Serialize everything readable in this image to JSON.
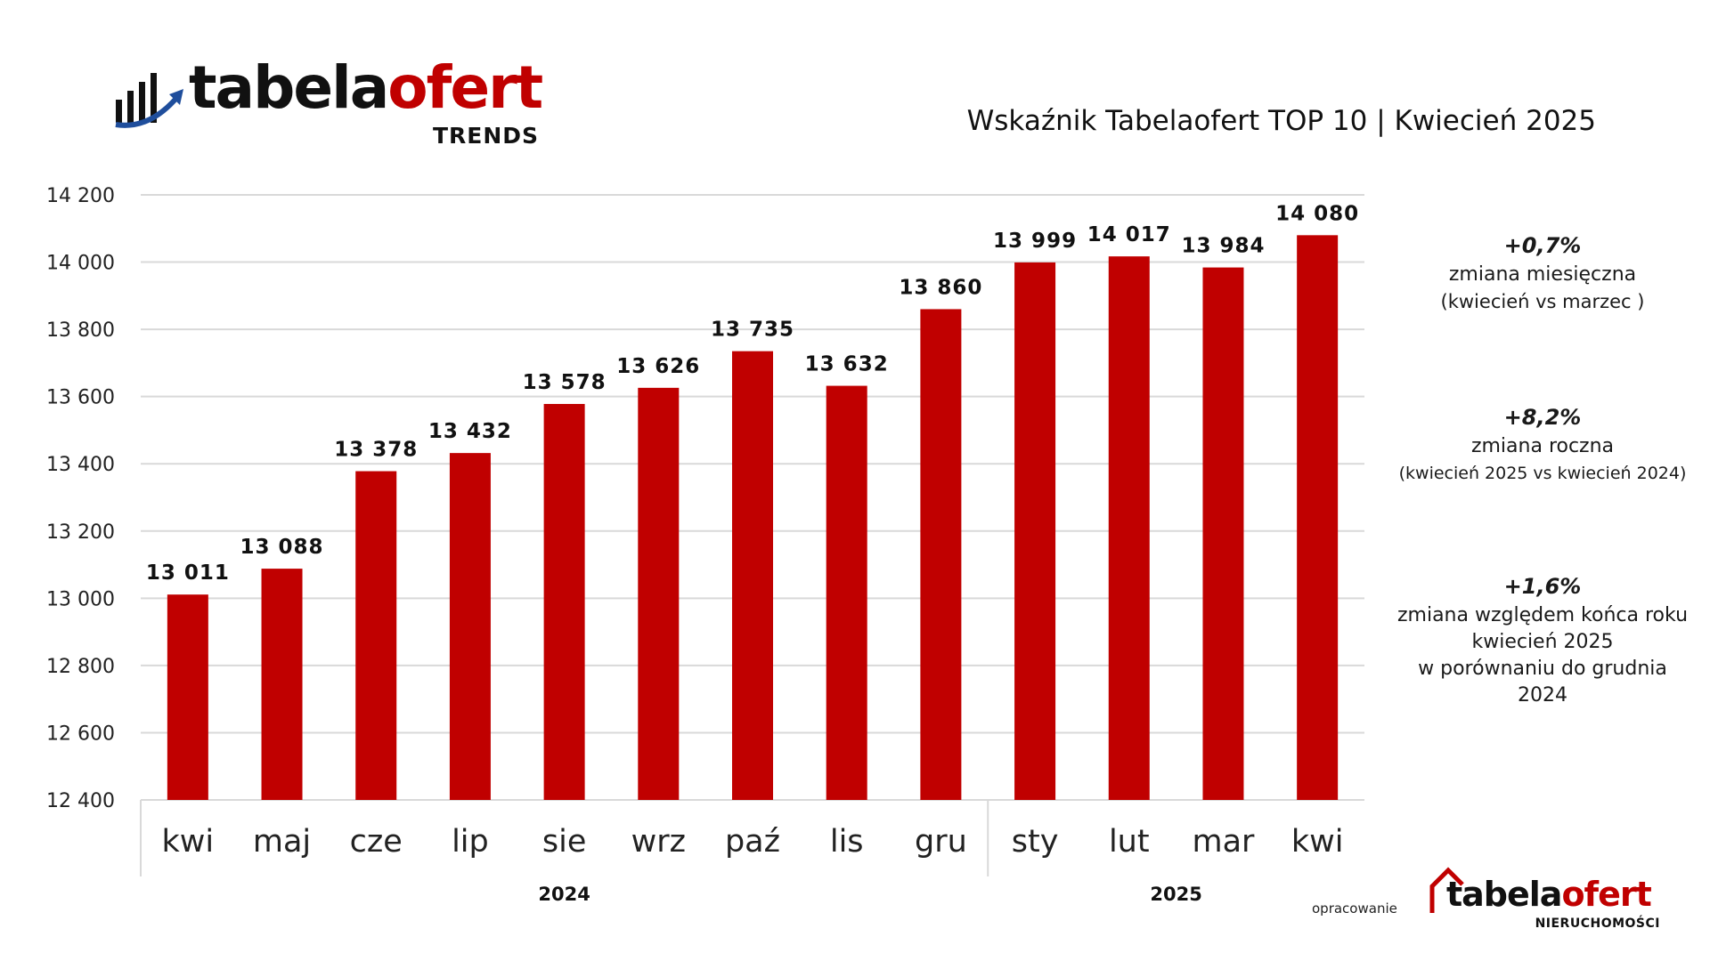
{
  "brand": {
    "logo_word_1": "tabela",
    "logo_word_2": "ofert",
    "logo_sub": "TRENDS",
    "red": "#c00000",
    "dark": "#111111"
  },
  "headline": "Wskaźnik Tabelaofert TOP 10  | Kwiecień 2025",
  "chart_data": {
    "type": "bar",
    "categories": [
      "kwi",
      "maj",
      "cze",
      "lip",
      "sie",
      "wrz",
      "paź",
      "lis",
      "gru",
      "sty",
      "lut",
      "mar",
      "kwi"
    ],
    "values": [
      13011,
      13088,
      13378,
      13432,
      13578,
      13626,
      13735,
      13632,
      13860,
      13999,
      14017,
      13984,
      14080
    ],
    "value_labels": [
      "13 011",
      "13 088",
      "13 378",
      "13 432",
      "13 578",
      "13 626",
      "13 735",
      "13 632",
      "13 860",
      "13 999",
      "14 017",
      "13 984",
      "14 080"
    ],
    "ylim": [
      12400,
      14200
    ],
    "yticks": [
      12400,
      12600,
      12800,
      13000,
      13200,
      13400,
      13600,
      13800,
      14000,
      14200
    ],
    "ytick_labels": [
      "12 400",
      "12 600",
      "12 800",
      "13 000",
      "13 200",
      "13 400",
      "13 600",
      "13 800",
      "14 000",
      "14 200"
    ],
    "groups": [
      {
        "label": "2024",
        "count": 9
      },
      {
        "label": "2025",
        "count": 4
      }
    ],
    "grid": true,
    "bar_color": "#c00000",
    "grid_color": "#d9d9d9"
  },
  "stats": [
    {
      "value": "+0,7%",
      "lines": [
        "zmiana miesięczna",
        "(kwiecień vs marzec )"
      ]
    },
    {
      "value": "+8,2%",
      "lines": [
        "zmiana roczna",
        "(kwiecień 2025  vs kwiecień 2024)"
      ]
    },
    {
      "value": "+1,6%",
      "lines": [
        "zmiana względem końca roku",
        "kwiecień 2025",
        " w porównaniu do grudnia",
        "2024"
      ]
    }
  ],
  "footer": {
    "made_by": "opracowanie",
    "logo_word_1": "tabela",
    "logo_word_2": "ofert",
    "logo_sub": "NIERUCHOMOŚCI"
  }
}
